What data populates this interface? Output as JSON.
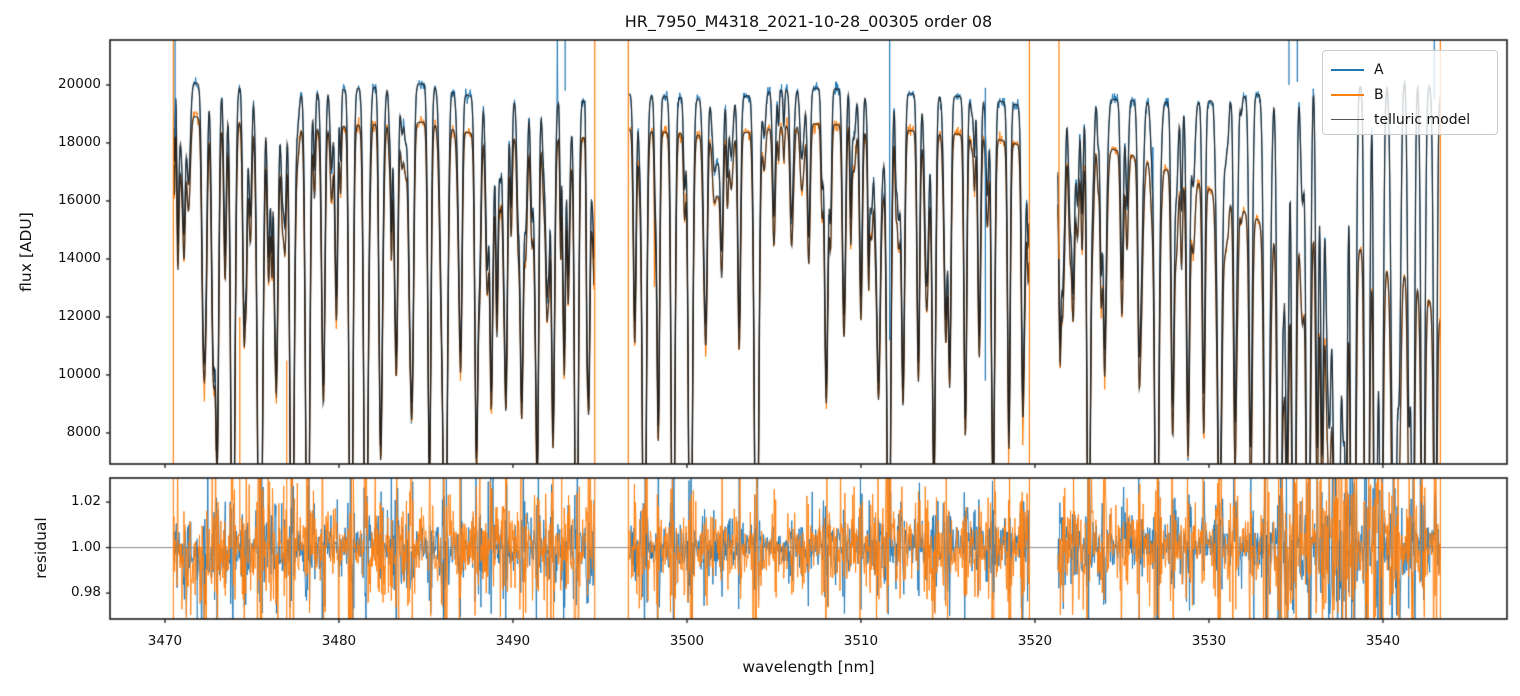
{
  "chart_data": {
    "type": "line",
    "title": "HR_7950_M4318_2021-10-28_00305  order 08",
    "xlabel": "wavelength [nm]",
    "xlim": [
      3466.84,
      3547.13
    ],
    "xticks": [
      3470,
      3480,
      3490,
      3500,
      3510,
      3520,
      3530,
      3540
    ],
    "panels": [
      {
        "name": "flux",
        "ylabel": "flux [ADU]",
        "ylim": [
          6930,
          21550
        ],
        "yticks": [
          8000,
          10000,
          12000,
          14000,
          16000,
          18000,
          20000
        ],
        "ytick_labels": [
          "8000",
          "10000",
          "12000",
          "14000",
          "16000",
          "18000",
          "20000"
        ]
      },
      {
        "name": "residual",
        "ylabel": "residual",
        "ylim": [
          0.9686,
          1.0306
        ],
        "yticks": [
          0.98,
          1.0,
          1.02
        ],
        "ytick_labels": [
          "0.98",
          "1.00",
          "1.02"
        ],
        "hline": 1.0
      }
    ],
    "legend": [
      {
        "label": "A",
        "color": "#1f77b4"
      },
      {
        "label": "B",
        "color": "#ff7f0e"
      },
      {
        "label": "telluric model",
        "color": "#555555"
      }
    ],
    "colors": {
      "model_overlay": "rgba(25,25,25,0.82)",
      "spine": "#1a1a1a",
      "hline": "#888888"
    },
    "segments": [
      [
        3470.5,
        3494.65
      ],
      [
        3496.7,
        3519.66
      ],
      [
        3521.32,
        3543.3
      ]
    ],
    "series": {
      "A_continuum": [
        [
          3470.5,
          20700
        ],
        [
          3471.2,
          20150
        ],
        [
          3473,
          19900
        ],
        [
          3475,
          20000
        ],
        [
          3477,
          19800
        ],
        [
          3479,
          19750
        ],
        [
          3481,
          19900
        ],
        [
          3483,
          19950
        ],
        [
          3485,
          20050
        ],
        [
          3487,
          19700
        ],
        [
          3489,
          19400
        ],
        [
          3491,
          19500
        ],
        [
          3493,
          19420
        ],
        [
          3494.6,
          19520
        ],
        [
          3496.7,
          19700
        ],
        [
          3499,
          19600
        ],
        [
          3501,
          19500
        ],
        [
          3503,
          19570
        ],
        [
          3505,
          19800
        ],
        [
          3507,
          19900
        ],
        [
          3509,
          19850
        ],
        [
          3511,
          19750
        ],
        [
          3513,
          19700
        ],
        [
          3515,
          19620
        ],
        [
          3517,
          19560
        ],
        [
          3519,
          19320
        ],
        [
          3519.7,
          19150
        ],
        [
          3521.3,
          19050
        ],
        [
          3523,
          19480
        ],
        [
          3525,
          19500
        ],
        [
          3527,
          19420
        ],
        [
          3529,
          19400
        ],
        [
          3531,
          19500
        ],
        [
          3533,
          19700
        ],
        [
          3534.5,
          20250
        ],
        [
          3536,
          20400
        ],
        [
          3537.5,
          20300
        ],
        [
          3539,
          19900
        ],
        [
          3540.5,
          20100
        ],
        [
          3541.5,
          20250
        ],
        [
          3542.5,
          20050
        ],
        [
          3543.4,
          19600
        ]
      ],
      "B_continuum": [
        [
          3470.5,
          19300
        ],
        [
          3471.5,
          18950
        ],
        [
          3473,
          18700
        ],
        [
          3475,
          18780
        ],
        [
          3477,
          18560
        ],
        [
          3479,
          18500
        ],
        [
          3481,
          18620
        ],
        [
          3483,
          18670
        ],
        [
          3485,
          18720
        ],
        [
          3487,
          18420
        ],
        [
          3489,
          18160
        ],
        [
          3491,
          18230
        ],
        [
          3493,
          18150
        ],
        [
          3494.6,
          18230
        ],
        [
          3496.7,
          18470
        ],
        [
          3499,
          18360
        ],
        [
          3501,
          18260
        ],
        [
          3503,
          18320
        ],
        [
          3505,
          18520
        ],
        [
          3507,
          18670
        ],
        [
          3509,
          18620
        ],
        [
          3511,
          18520
        ],
        [
          3513,
          18420
        ],
        [
          3515,
          18320
        ],
        [
          3517,
          18260
        ],
        [
          3519,
          17950
        ],
        [
          3519.7,
          17450
        ],
        [
          3521.3,
          17800
        ],
        [
          3523,
          17850
        ],
        [
          3524.5,
          17780
        ],
        [
          3526,
          17500
        ],
        [
          3528,
          16950
        ],
        [
          3529.5,
          16600
        ],
        [
          3531,
          16050
        ],
        [
          3532.5,
          15450
        ],
        [
          3533.8,
          15050
        ],
        [
          3535,
          14850
        ],
        [
          3536,
          15150
        ],
        [
          3537,
          15350
        ],
        [
          3537.8,
          14950
        ],
        [
          3539,
          14150
        ],
        [
          3540.3,
          13650
        ],
        [
          3541.5,
          13450
        ],
        [
          3542.5,
          12750
        ],
        [
          3543.4,
          11800
        ]
      ],
      "telluric_lines": [
        [
          3471.35,
          0.14,
          0.1
        ],
        [
          3472.2,
          0.28,
          0.09
        ],
        [
          3473.0,
          0.6,
          0.09
        ],
        [
          3473.9,
          0.97,
          0.11
        ],
        [
          3474.55,
          0.38,
          0.08
        ],
        [
          3475.45,
          0.985,
          0.13
        ],
        [
          3476.4,
          0.48,
          0.09
        ],
        [
          3477.3,
          0.98,
          0.11
        ],
        [
          3478.2,
          0.985,
          0.11
        ],
        [
          3479.1,
          0.42,
          0.08
        ],
        [
          3479.85,
          0.36,
          0.08
        ],
        [
          3480.7,
          0.92,
          0.1
        ],
        [
          3481.55,
          0.98,
          0.11
        ],
        [
          3482.4,
          0.52,
          0.08
        ],
        [
          3483.3,
          0.44,
          0.09
        ],
        [
          3484.2,
          0.3,
          0.08
        ],
        [
          3485.2,
          0.66,
          0.09
        ],
        [
          3486.1,
          0.975,
          0.11
        ],
        [
          3487.0,
          0.36,
          0.08
        ],
        [
          3487.9,
          0.62,
          0.09
        ],
        [
          3488.75,
          0.47,
          0.08
        ],
        [
          3489.6,
          0.4,
          0.08
        ],
        [
          3490.5,
          0.48,
          0.09
        ],
        [
          3491.4,
          0.58,
          0.08
        ],
        [
          3492.3,
          0.57,
          0.09
        ],
        [
          3492.95,
          0.44,
          0.07
        ],
        [
          3493.65,
          0.975,
          0.1
        ],
        [
          3494.35,
          0.52,
          0.08
        ],
        [
          3497.0,
          0.4,
          0.08
        ],
        [
          3497.55,
          0.975,
          0.11
        ],
        [
          3498.35,
          0.58,
          0.08
        ],
        [
          3499.2,
          0.975,
          0.1
        ],
        [
          3500.2,
          0.98,
          0.11
        ],
        [
          3501.1,
          0.32,
          0.08
        ],
        [
          3502.0,
          0.26,
          0.08
        ],
        [
          3503.0,
          0.36,
          0.08
        ],
        [
          3504.0,
          0.98,
          0.12
        ],
        [
          3505.0,
          0.22,
          0.08
        ],
        [
          3506.0,
          0.2,
          0.08
        ],
        [
          3507.0,
          0.26,
          0.08
        ],
        [
          3508.0,
          0.48,
          0.09
        ],
        [
          3509.0,
          0.32,
          0.08
        ],
        [
          3510.0,
          0.36,
          0.08
        ],
        [
          3511.0,
          0.42,
          0.08
        ],
        [
          3511.6,
          0.98,
          0.1
        ],
        [
          3512.45,
          0.36,
          0.08
        ],
        [
          3513.3,
          0.47,
          0.08
        ],
        [
          3514.2,
          0.62,
          0.09
        ],
        [
          3515.1,
          0.47,
          0.08
        ],
        [
          3516.0,
          0.57,
          0.08
        ],
        [
          3516.8,
          0.42,
          0.08
        ],
        [
          3517.6,
          0.68,
          0.09
        ],
        [
          3518.5,
          0.52,
          0.08
        ],
        [
          3519.3,
          0.48,
          0.08
        ],
        [
          3521.45,
          0.35,
          0.06
        ],
        [
          3522.2,
          0.32,
          0.08
        ],
        [
          3523.1,
          0.78,
          0.09
        ],
        [
          3524.0,
          0.36,
          0.08
        ],
        [
          3525.0,
          0.32,
          0.08
        ],
        [
          3526.0,
          0.42,
          0.08
        ],
        [
          3527.0,
          0.975,
          0.11
        ],
        [
          3527.9,
          0.47,
          0.08
        ],
        [
          3528.8,
          0.57,
          0.09
        ],
        [
          3529.7,
          0.52,
          0.08
        ],
        [
          3530.6,
          0.67,
          0.09
        ],
        [
          3531.5,
          0.57,
          0.08
        ],
        [
          3532.4,
          0.62,
          0.09
        ],
        [
          3533.3,
          0.975,
          0.12
        ],
        [
          3534.1,
          0.98,
          0.1
        ],
        [
          3534.9,
          0.98,
          0.1
        ],
        [
          3535.7,
          0.975,
          0.1
        ],
        [
          3536.5,
          0.62,
          0.08
        ],
        [
          3537.3,
          0.47,
          0.08
        ],
        [
          3538.3,
          0.975,
          0.1
        ],
        [
          3539.1,
          0.62,
          0.08
        ],
        [
          3539.9,
          0.975,
          0.1
        ],
        [
          3540.7,
          0.57,
          0.08
        ],
        [
          3541.5,
          0.52,
          0.08
        ],
        [
          3542.3,
          0.975,
          0.1
        ],
        [
          3543.0,
          0.72,
          0.09
        ]
      ],
      "minor_lines": [
        {
          "seed": 7,
          "count": 150,
          "range": [
            3470.5,
            3543.3
          ],
          "depth_range": [
            0.03,
            0.22
          ],
          "width_range": [
            0.04,
            0.11
          ]
        },
        {
          "seed": 11,
          "count": 26,
          "range": [
            3533.2,
            3543.25
          ],
          "depth_range": [
            0.3,
            0.9
          ],
          "width_range": [
            0.05,
            0.13
          ]
        },
        {
          "seed": 23,
          "count": 40,
          "range": [
            3470.5,
            3497.0
          ],
          "depth_range": [
            0.05,
            0.3
          ],
          "width_range": [
            0.04,
            0.1
          ]
        }
      ],
      "noise": {
        "seed": 42,
        "A_sigma": 0.0055,
        "B_sigma": 0.0065,
        "residual_A_sigma": 0.0045,
        "residual_B_sigma": 0.006,
        "line_boost": 6,
        "resid_dip_center": 3472.2,
        "resid_dip_width": 1.15,
        "resid_dip_depth": 0.0065
      }
    },
    "spikes": {
      "orange_full": [
        3470.48,
        3494.7,
        3496.63,
        3519.68,
        3543.3
      ],
      "blue_flux": [
        [
          3470.58,
          18200,
          21550
        ],
        [
          3493.0,
          19800,
          21550
        ],
        [
          3511.65,
          11200,
          21550
        ],
        [
          3517.15,
          9800,
          19900
        ],
        [
          3534.6,
          20000,
          21550
        ],
        [
          3535.08,
          20100,
          21550
        ],
        [
          3542.95,
          19500,
          21550
        ]
      ],
      "orange_flux": [
        [
          3521.38,
          14000,
          21550
        ],
        [
          3474.3,
          6930,
          12000
        ],
        [
          3477.0,
          6930,
          10500
        ]
      ],
      "blue_resid": [
        [
          3471.85,
          0.9686,
          1.004
        ],
        [
          3486.0,
          0.9686,
          0.995
        ]
      ],
      "orange_resid": [
        [
          3474.3,
          1.005,
          1.0306
        ],
        [
          3477.0,
          0.9686,
          1.0306
        ],
        [
          3492.8,
          0.995,
          1.0306
        ]
      ]
    }
  }
}
